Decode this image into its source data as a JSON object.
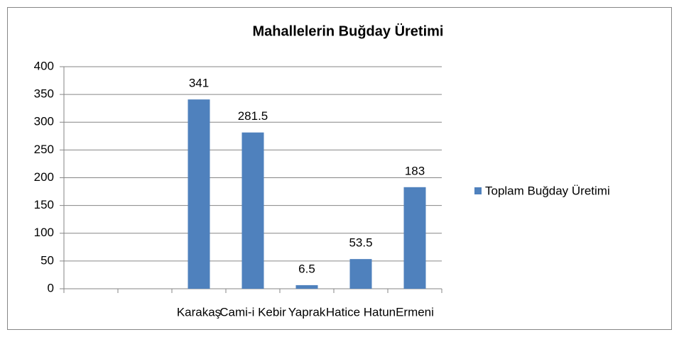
{
  "chart_data": {
    "type": "bar",
    "title": "Mahallelerin Buğday Üretimi",
    "categories": [
      null,
      null,
      "Karakaş",
      "Cami-i Kebir",
      "Yaprak",
      "Hatice Hatun",
      "Ermeni"
    ],
    "series": [
      {
        "name": "Toplam Buğday Üretimi",
        "color": "#4f81bd",
        "values": [
          null,
          null,
          341,
          281.5,
          6.5,
          53.5,
          183
        ]
      }
    ],
    "ylim": [
      0,
      400
    ],
    "yticks": [
      0,
      50,
      100,
      150,
      200,
      250,
      300,
      350,
      400
    ],
    "grid": true,
    "legend": "right"
  }
}
